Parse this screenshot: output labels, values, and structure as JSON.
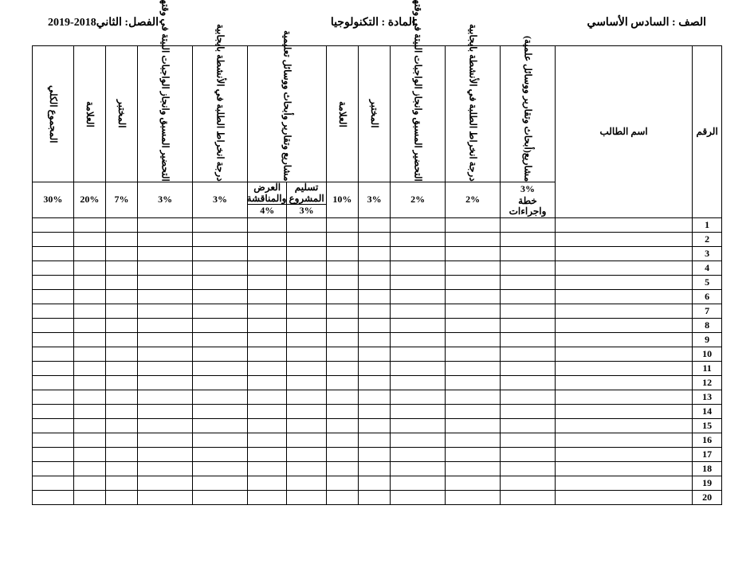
{
  "header": {
    "grade_label": "الصف :",
    "grade_value": "السادس  الأساسي",
    "subject_label": "المادة :",
    "subject_value": "التكنولوجيا",
    "term_label": "الفصل:",
    "term_value": "الثاني2018-2019"
  },
  "columns": {
    "number": "الرقم",
    "student_name": "اسم الطالب",
    "c1": "مشاريع(أبحاث وتقارير ووسائل علمية)",
    "c2": "درجة انخراط الطلبة في الأنشطة بايجابية",
    "c3": "التحضير المسبق وانجاز الواجبات البيتة في وقتها",
    "c4": "المختبر",
    "c5": "العلامة",
    "c6": "مشاريع وتقارير وأبحاث ووسائل تعليمية",
    "c7": "درجة انخراط الطلبة في الأنشطة بايجابية",
    "c8": "التحضير المسبق وانجاز الواجبات البيتة في وقتها",
    "c9": "المختبر",
    "c10": "العلامة",
    "c11": "المجموع الكلي"
  },
  "percents": {
    "p1_label": "3%",
    "p1_sub": "خطة واجراءات",
    "p2": "2%",
    "p3": "2%",
    "p4": "3%",
    "p5": "10%",
    "p6_a_top": "تسليم المشروع",
    "p6_a_bot": "3%",
    "p6_b_top": "العرض والمناقشة",
    "p6_b_bot": "4%",
    "p7": "3%",
    "p8": "3%",
    "p9": "7%",
    "p10": "20%",
    "p11": "30%"
  },
  "rows": [
    1,
    2,
    3,
    4,
    5,
    6,
    7,
    8,
    9,
    10,
    11,
    12,
    13,
    14,
    15,
    16,
    17,
    18,
    19,
    20
  ]
}
